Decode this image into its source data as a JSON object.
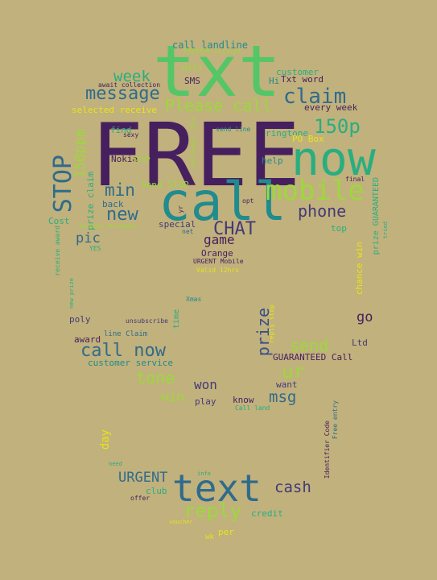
{
  "palette": {
    "background": "#c1b17c",
    "dark_purple": "#46205e",
    "purple": "#433a78",
    "indigo": "#3b4f8a",
    "blue": "#2f6b8c",
    "teal": "#218b8d",
    "green": "#28ae80",
    "light_green": "#55c667",
    "lime": "#9bd93c",
    "yellow": "#e6e419"
  },
  "words": [
    {
      "text": "FREE",
      "color": "dark_purple"
    },
    {
      "text": "txt",
      "color": "light_green"
    },
    {
      "text": "call",
      "color": "teal"
    },
    {
      "text": "now",
      "color": "green"
    },
    {
      "text": "mobile",
      "color": "lime"
    },
    {
      "text": "text",
      "color": "blue"
    },
    {
      "text": "STOP",
      "color": "blue"
    },
    {
      "text": "claim",
      "color": "blue"
    },
    {
      "text": "150p",
      "color": "green"
    },
    {
      "text": "message",
      "color": "blue"
    },
    {
      "text": "Please call",
      "color": "lime"
    },
    {
      "text": "week",
      "color": "green"
    },
    {
      "text": "min",
      "color": "blue"
    },
    {
      "text": "new",
      "color": "blue"
    },
    {
      "text": "phone",
      "color": "purple"
    },
    {
      "text": "CHAT",
      "color": "purple"
    },
    {
      "text": "call now",
      "color": "blue"
    },
    {
      "text": "ur",
      "color": "lime"
    },
    {
      "text": "send",
      "color": "lime"
    },
    {
      "text": "prize",
      "color": "indigo"
    },
    {
      "text": "reply",
      "color": "lime"
    },
    {
      "text": "cash",
      "color": "purple"
    },
    {
      "text": "URGENT",
      "color": "blue"
    },
    {
      "text": "tone",
      "color": "lime"
    },
    {
      "text": "msg",
      "color": "blue"
    },
    {
      "text": "150ppm",
      "color": "lime"
    },
    {
      "text": "pic",
      "color": "blue"
    },
    {
      "text": "game",
      "color": "dark_purple"
    },
    {
      "text": "go",
      "color": "dark_purple"
    },
    {
      "text": "won",
      "color": "purple"
    },
    {
      "text": "win",
      "color": "lime"
    },
    {
      "text": "call landline",
      "color": "teal"
    },
    {
      "text": "PRIVATE Account",
      "color": "lime"
    },
    {
      "text": "customer",
      "color": "green"
    },
    {
      "text": "SMS",
      "color": "dark_purple"
    },
    {
      "text": "Txt word",
      "color": "dark_purple"
    },
    {
      "text": "will",
      "color": "lime"
    },
    {
      "text": "Hi",
      "color": "teal"
    },
    {
      "text": "await collection",
      "color": "dark_purple"
    },
    {
      "text": "every week",
      "color": "dark_purple"
    },
    {
      "text": "selected receive",
      "color": "yellow"
    },
    {
      "text": "find",
      "color": "green"
    },
    {
      "text": "sexy",
      "color": "dark_purple"
    },
    {
      "text": "send line",
      "color": "teal"
    },
    {
      "text": "ringtone",
      "color": "green"
    },
    {
      "text": "PO Box",
      "color": "yellow"
    },
    {
      "text": "Nokia",
      "color": "dark_purple"
    },
    {
      "text": "help",
      "color": "teal"
    },
    {
      "text": "final",
      "color": "dark_purple"
    },
    {
      "text": "prize GUARANTEED",
      "color": "green"
    },
    {
      "text": "prize claim",
      "color": "green"
    },
    {
      "text": "Send STOP",
      "color": "lime"
    },
    {
      "text": "national rate",
      "color": "lime"
    },
    {
      "text": "back",
      "color": "blue"
    },
    {
      "text": "opt",
      "color": "dark_purple"
    },
    {
      "text": "Cost",
      "color": "green"
    },
    {
      "text": "Account Statement",
      "color": "lime"
    },
    {
      "text": "special",
      "color": "purple"
    },
    {
      "text": "net",
      "color": "blue"
    },
    {
      "text": "yr",
      "color": "dark_purple"
    },
    {
      "text": "top",
      "color": "green"
    },
    {
      "text": "chance win",
      "color": "yellow"
    },
    {
      "text": "Orange",
      "color": "dark_purple"
    },
    {
      "text": "URGENT Mobile",
      "color": "dark_purple"
    },
    {
      "text": "Valid 12hrs",
      "color": "yellow"
    },
    {
      "text": "YES",
      "color": "green"
    },
    {
      "text": "receive award",
      "color": "green"
    },
    {
      "text": "Xmas",
      "color": "teal"
    },
    {
      "text": "poly",
      "color": "purple"
    },
    {
      "text": "unsubscribe",
      "color": "purple"
    },
    {
      "text": "time",
      "color": "green"
    },
    {
      "text": "reply stop",
      "color": "yellow"
    },
    {
      "text": "award",
      "color": "dark_purple"
    },
    {
      "text": "line Claim",
      "color": "blue"
    },
    {
      "text": "customer service",
      "color": "teal"
    },
    {
      "text": "GUARANTEED Call",
      "color": "dark_purple"
    },
    {
      "text": "Ltd",
      "color": "purple"
    },
    {
      "text": "want",
      "color": "purple"
    },
    {
      "text": "play",
      "color": "purple"
    },
    {
      "text": "know",
      "color": "dark_purple"
    },
    {
      "text": "Call land",
      "color": "green"
    },
    {
      "text": "Free entry",
      "color": "blue"
    },
    {
      "text": "Identifier Code",
      "color": "dark_purple"
    },
    {
      "text": "day",
      "color": "yellow"
    },
    {
      "text": "need",
      "color": "green"
    },
    {
      "text": "info",
      "color": "green"
    },
    {
      "text": "club",
      "color": "green"
    },
    {
      "text": "offer",
      "color": "dark_purple"
    },
    {
      "text": "credit",
      "color": "green"
    },
    {
      "text": "per",
      "color": "yellow"
    },
    {
      "text": "wk",
      "color": "yellow"
    },
    {
      "text": "voucher",
      "color": "yellow"
    },
    {
      "text": "new prize",
      "color": "green"
    },
    {
      "text": "tried",
      "color": "green"
    },
    {
      "text": "STOP",
      "color": "lime"
    }
  ]
}
